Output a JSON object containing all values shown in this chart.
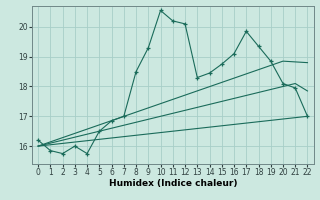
{
  "xlabel": "Humidex (Indice chaleur)",
  "ylabel": "",
  "bg_color": "#cce8e0",
  "grid_color": "#a8cec8",
  "line_color": "#1a6b5a",
  "xlim": [
    -0.5,
    22.5
  ],
  "ylim": [
    15.4,
    20.7
  ],
  "yticks": [
    16,
    17,
    18,
    19,
    20
  ],
  "xticks": [
    0,
    1,
    2,
    3,
    4,
    5,
    6,
    7,
    8,
    9,
    10,
    11,
    12,
    13,
    14,
    15,
    16,
    17,
    18,
    19,
    20,
    21,
    22
  ],
  "line1_x": [
    0,
    1,
    2,
    3,
    4,
    5,
    6,
    7,
    8,
    9,
    10,
    11,
    12,
    13,
    14,
    15,
    16,
    17,
    18,
    19,
    20,
    21,
    22
  ],
  "line1_y": [
    16.2,
    15.85,
    15.75,
    16.0,
    15.75,
    16.5,
    16.85,
    17.0,
    18.5,
    19.3,
    20.55,
    20.2,
    20.1,
    18.3,
    18.45,
    18.75,
    19.1,
    19.85,
    19.35,
    18.85,
    18.1,
    17.95,
    17.0
  ],
  "line2_x": [
    0,
    22
  ],
  "line2_y": [
    16.0,
    17.0
  ],
  "line3_x": [
    0,
    21,
    22
  ],
  "line3_y": [
    16.0,
    18.1,
    17.85
  ],
  "line4_x": [
    0,
    20,
    22
  ],
  "line4_y": [
    16.0,
    18.85,
    18.8
  ]
}
